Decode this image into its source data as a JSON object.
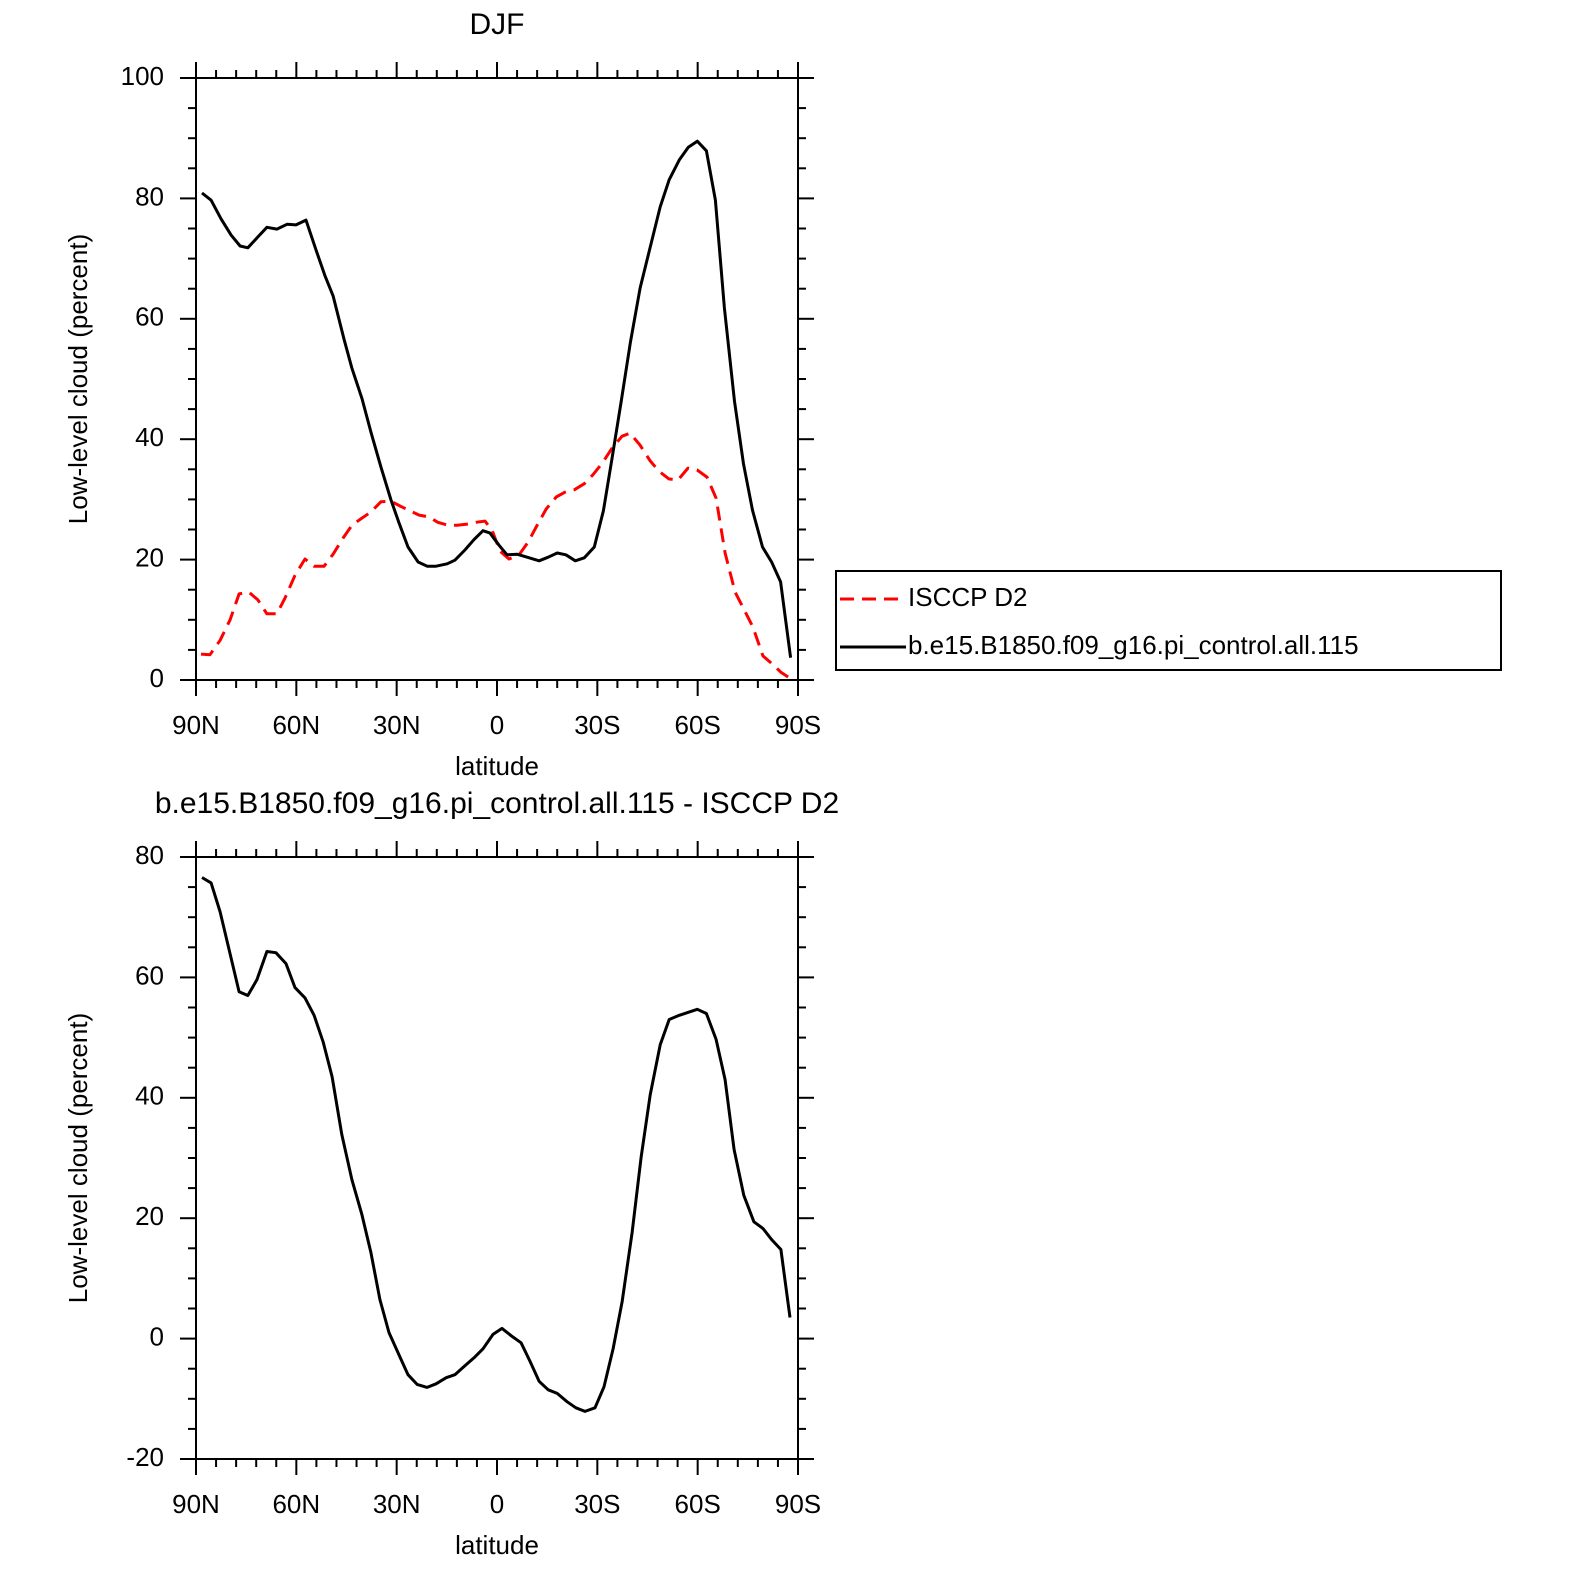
{
  "chart_data": [
    {
      "type": "line",
      "title": "DJF",
      "xlabel": "latitude",
      "ylabel": "Low-level cloud (percent)",
      "xlim": [
        90,
        -90
      ],
      "xticks": [
        {
          "value": 90,
          "label": "90N"
        },
        {
          "value": 60,
          "label": "60N"
        },
        {
          "value": 30,
          "label": "30N"
        },
        0,
        {
          "value": -30,
          "label": "30S"
        },
        {
          "value": -60,
          "label": "60S"
        },
        {
          "value": -90,
          "label": "90S"
        }
      ],
      "ylim": [
        0,
        100
      ],
      "yticks": [
        0,
        20,
        40,
        60,
        80,
        100
      ],
      "legend": "right",
      "series": [
        {
          "name": "ISCCP D2",
          "color": "#ff0000",
          "linestyle": "dashed",
          "x": [
            88.5,
            85.8,
            82.8,
            79.8,
            77.1,
            74.2,
            71.5,
            68.8,
            65.8,
            63.4,
            60.4,
            57.4,
            54.7,
            51.7,
            49,
            46,
            43.4,
            40.4,
            37.7,
            34.7,
            31.7,
            29,
            26,
            23.3,
            20.3,
            17.7,
            14.6,
            11.9,
            8.9,
            6.3,
            3.6,
            1.5,
            -0.9,
            -3.6,
            -6.6,
            -9.3,
            -12,
            -14.7,
            -17.7,
            -20.3,
            -23.1,
            -26.1,
            -28.7,
            -31.7,
            -34.4,
            -37.4,
            -39.8,
            -42.8,
            -45.8,
            -48.4,
            -51.4,
            -54.1,
            -57.1,
            -59.8,
            -62.8,
            -65.5,
            -68.2,
            -71.2,
            -73.8,
            -76.5,
            -79.5,
            -82.2,
            -84.9,
            -87.6,
            -89.1
          ],
          "values": [
            4.3,
            4.2,
            6.6,
            10,
            14.3,
            14.6,
            13.3,
            11,
            11,
            13.6,
            17.4,
            20.1,
            18.9,
            18.9,
            20.9,
            23.6,
            25.7,
            26.9,
            27.9,
            29.6,
            29.7,
            28.9,
            28.1,
            27.4,
            27.1,
            26.2,
            25.7,
            25.7,
            25.9,
            26.2,
            26.4,
            24.9,
            21.4,
            20.1,
            20.8,
            22.9,
            25.7,
            28.4,
            30.4,
            31.2,
            31.6,
            32.6,
            34.1,
            36.2,
            38.5,
            40.5,
            41,
            39,
            36.4,
            34.7,
            33.4,
            33.2,
            35.2,
            34.9,
            33.7,
            30.2,
            21.1,
            14.6,
            11.8,
            8.8,
            4,
            2.7,
            1.3,
            0.3,
            0
          ]
        },
        {
          "name": "b.e15.B1850.f09_g16.pi_control.all.115",
          "color": "#000000",
          "linestyle": "solid",
          "x": [
            88.2,
            85.5,
            82.5,
            79.5,
            76.8,
            74.5,
            71.5,
            68.8,
            65.8,
            62.8,
            60.1,
            57.1,
            54.1,
            51.4,
            49,
            45.7,
            43.4,
            40.4,
            37.7,
            34.7,
            31.7,
            29.3,
            26.6,
            23.6,
            20.9,
            18.2,
            14.9,
            12.6,
            9.6,
            6.9,
            4.2,
            2.1,
            -0.6,
            -3,
            -6,
            -9,
            -12.6,
            -15.3,
            -18,
            -20.6,
            -23.4,
            -26.1,
            -29.1,
            -31.8,
            -34.5,
            -37.2,
            -39.9,
            -42.8,
            -45.8,
            -48.8,
            -51.5,
            -54.5,
            -57.2,
            -59.9,
            -62.6,
            -65.3,
            -68,
            -71,
            -73.7,
            -76.4,
            -79.4,
            -82.1,
            -84.8,
            -87.8
          ],
          "values": [
            80.9,
            79.7,
            76.6,
            73.9,
            72.1,
            71.8,
            73.6,
            75.2,
            74.9,
            75.7,
            75.6,
            76.4,
            71.4,
            67.1,
            63.8,
            56.5,
            51.8,
            46.8,
            41.2,
            35.4,
            29.9,
            26.1,
            22.1,
            19.6,
            18.9,
            18.9,
            19.3,
            19.9,
            21.6,
            23.3,
            24.8,
            24.4,
            22.4,
            20.8,
            20.9,
            20.4,
            19.8,
            20.4,
            21.1,
            20.8,
            19.8,
            20.3,
            22.1,
            28.1,
            37.2,
            46.5,
            56.1,
            65.1,
            71.9,
            78.6,
            83.1,
            86.4,
            88.5,
            89.5,
            87.9,
            79.7,
            61.8,
            46.3,
            35.9,
            28.2,
            22.1,
            19.6,
            16.3,
            3.7
          ]
        }
      ]
    },
    {
      "type": "line",
      "title": "b.e15.B1850.f09_g16.pi_control.all.115 - ISCCP D2",
      "xlabel": "latitude",
      "ylabel": "Low-level cloud (percent)",
      "xlim": [
        90,
        -90
      ],
      "xticks": [
        {
          "value": 90,
          "label": "90N"
        },
        {
          "value": 60,
          "label": "60N"
        },
        {
          "value": 30,
          "label": "30N"
        },
        0,
        {
          "value": -30,
          "label": "30S"
        },
        {
          "value": -60,
          "label": "60S"
        },
        {
          "value": -90,
          "label": "90S"
        }
      ],
      "ylim": [
        -20,
        80
      ],
      "yticks": [
        -20,
        0,
        20,
        40,
        60,
        80
      ],
      "series": [
        {
          "color": "#000000",
          "linestyle": "solid",
          "x": [
            88.2,
            85.5,
            82.8,
            80.1,
            77.1,
            74.5,
            71.8,
            68.8,
            66.1,
            63.1,
            60.4,
            57.4,
            54.7,
            52,
            49.3,
            46.4,
            43.4,
            40.4,
            37.7,
            35,
            32.3,
            29.3,
            26.6,
            23.9,
            20.9,
            18.2,
            15.2,
            12.6,
            9.6,
            6.9,
            4.2,
            1.2,
            -1.5,
            -4.2,
            -7.2,
            -9.9,
            -12.6,
            -15.3,
            -18,
            -21,
            -23.6,
            -26.3,
            -29.3,
            -32,
            -34.7,
            -37.4,
            -40.4,
            -43.1,
            -45.8,
            -48.8,
            -51.5,
            -54.5,
            -57.2,
            -59.9,
            -62.6,
            -65.5,
            -68.2,
            -70.9,
            -73.8,
            -76.8,
            -79.5,
            -82.2,
            -84.9,
            -87.6
          ],
          "values": [
            76.6,
            75.7,
            70.9,
            64.6,
            57.6,
            57,
            59.6,
            64.3,
            64.1,
            62.3,
            58.3,
            56.6,
            53.7,
            49.3,
            43.5,
            33.9,
            26.4,
            20.6,
            14.3,
            6.5,
            1,
            -2.7,
            -6,
            -7.6,
            -8.1,
            -7.5,
            -6.5,
            -6,
            -4.5,
            -3.2,
            -1.7,
            0.7,
            1.7,
            0.5,
            -0.7,
            -3.8,
            -7.1,
            -8.5,
            -9.1,
            -10.5,
            -11.5,
            -12.1,
            -11.5,
            -8,
            -1.7,
            6.1,
            17.6,
            30.1,
            40.5,
            48.8,
            53,
            53.7,
            54.2,
            54.7,
            54,
            49.7,
            43,
            31.4,
            23.8,
            19.4,
            18.3,
            16.4,
            14.8,
            3.5
          ]
        }
      ]
    }
  ]
}
